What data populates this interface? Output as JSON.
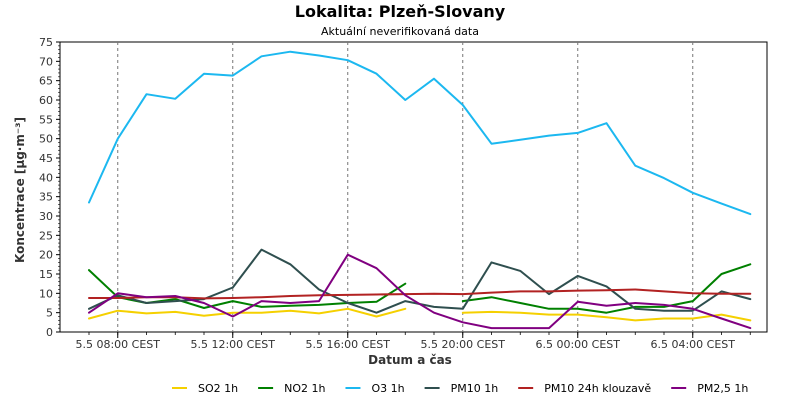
{
  "chart_data": {
    "type": "line",
    "title": "Lokalita: Plzeň-Slovany",
    "subtitle": "Aktuální neverifikovaná data",
    "xlabel": "Datum a čas",
    "ylabel": "Koncentrace [µg·m⁻³]",
    "ylim": [
      0,
      75
    ],
    "y_ticks": [
      0,
      5,
      10,
      15,
      20,
      25,
      30,
      35,
      40,
      45,
      50,
      55,
      60,
      65,
      70,
      75
    ],
    "x_hours": [
      "5.5 07:00",
      "5.5 08:00",
      "5.5 09:00",
      "5.5 10:00",
      "5.5 11:00",
      "5.5 12:00",
      "5.5 13:00",
      "5.5 14:00",
      "5.5 15:00",
      "5.5 16:00",
      "5.5 17:00",
      "5.5 18:00",
      "5.5 19:00",
      "5.5 20:00",
      "5.5 21:00",
      "5.5 22:00",
      "5.5 23:00",
      "6.5 00:00",
      "6.5 01:00",
      "6.5 02:00",
      "6.5 03:00",
      "6.5 04:00",
      "6.5 05:00",
      "6.5 06:00"
    ],
    "x_tick_labels": [
      {
        "label": "5.5 08:00 CEST",
        "hour": "5.5 08:00"
      },
      {
        "label": "5.5 12:00 CEST",
        "hour": "5.5 12:00"
      },
      {
        "label": "5.5 16:00 CEST",
        "hour": "5.5 16:00"
      },
      {
        "label": "5.5 20:00 CEST",
        "hour": "5.5 20:00"
      },
      {
        "label": "6.5 00:00 CEST",
        "hour": "6.5 00:00"
      },
      {
        "label": "6.5 04:00 CEST",
        "hour": "6.5 04:00"
      }
    ],
    "grid": true,
    "legend_position": "bottom",
    "series": [
      {
        "name": "SO2 1h",
        "color": "#f5d000",
        "values": [
          3.5,
          5.5,
          4.8,
          5.2,
          4.2,
          5.0,
          5.0,
          5.5,
          4.8,
          6.0,
          4.0,
          6.0,
          null,
          5.0,
          5.2,
          5.0,
          4.5,
          4.5,
          3.8,
          3.0,
          3.5,
          3.5,
          4.5,
          3.0
        ]
      },
      {
        "name": "NO2 1h",
        "color": "#008000",
        "values": [
          16.0,
          9.0,
          7.5,
          8.5,
          6.2,
          8.0,
          6.5,
          6.8,
          7.0,
          7.5,
          7.8,
          12.5,
          null,
          8.0,
          9.0,
          7.5,
          6.0,
          6.0,
          5.0,
          6.5,
          6.5,
          8.0,
          15.0,
          17.5
        ]
      },
      {
        "name": "O3 1h",
        "color": "#1cb8f0",
        "values": [
          33.5,
          50.0,
          61.5,
          60.3,
          66.8,
          66.3,
          71.3,
          72.5,
          71.5,
          70.3,
          66.8,
          60.0,
          65.5,
          58.7,
          48.7,
          49.7,
          50.8,
          51.5,
          54.0,
          43.0,
          39.8,
          36.0,
          33.2,
          30.5
        ]
      },
      {
        "name": "PM10 1h",
        "color": "#2f4f4f",
        "values": [
          6.0,
          9.5,
          7.5,
          8.0,
          8.5,
          11.5,
          21.3,
          17.5,
          11.0,
          7.5,
          5.0,
          8.0,
          6.5,
          6.0,
          18.0,
          15.8,
          9.8,
          14.5,
          11.8,
          6.0,
          5.5,
          5.5,
          10.5,
          8.5
        ]
      },
      {
        "name": "PM10 24h klouzavě",
        "color": "#b22222",
        "values": [
          8.8,
          8.8,
          9.0,
          9.0,
          8.7,
          8.8,
          9.0,
          9.3,
          9.5,
          9.6,
          9.7,
          9.8,
          9.9,
          9.8,
          10.2,
          10.5,
          10.5,
          10.7,
          10.8,
          11.0,
          10.5,
          10.0,
          9.9,
          9.9
        ]
      },
      {
        "name": "PM2,5 1h",
        "color": "#800080",
        "values": [
          5.0,
          10.0,
          9.0,
          9.3,
          7.5,
          4.0,
          8.0,
          7.5,
          8.0,
          20.0,
          16.5,
          9.5,
          5.0,
          2.5,
          1.0,
          1.0,
          1.0,
          7.8,
          6.8,
          7.5,
          7.0,
          6.0,
          3.5,
          1.0
        ]
      }
    ]
  }
}
